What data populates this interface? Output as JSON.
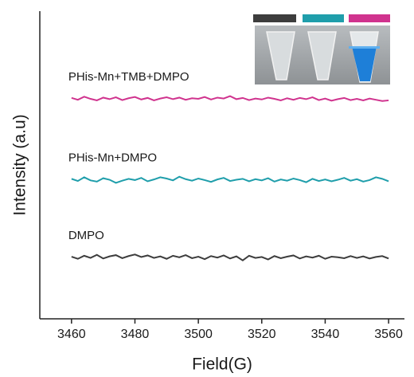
{
  "chart_data": {
    "type": "line",
    "xlabel": "Field(G)",
    "ylabel": "Intensity (a.u)",
    "x": [
      3460,
      3462,
      3464,
      3466,
      3468,
      3470,
      3472,
      3474,
      3476,
      3478,
      3480,
      3482,
      3484,
      3486,
      3488,
      3490,
      3492,
      3494,
      3496,
      3498,
      3500,
      3502,
      3504,
      3506,
      3508,
      3510,
      3512,
      3514,
      3516,
      3518,
      3520,
      3522,
      3524,
      3526,
      3528,
      3530,
      3532,
      3534,
      3536,
      3538,
      3540,
      3542,
      3544,
      3546,
      3548,
      3550,
      3552,
      3554,
      3556,
      3558,
      3560
    ],
    "xlim": [
      3450,
      3565
    ],
    "xticks": [
      3460,
      3480,
      3500,
      3520,
      3540,
      3560
    ],
    "ylim": [
      0,
      10
    ],
    "yticks": [],
    "series": [
      {
        "name": "DMPO",
        "color": "#3d3d3d",
        "values": [
          2.02,
          1.95,
          2.05,
          1.98,
          2.08,
          1.96,
          2.03,
          2.07,
          1.97,
          2.04,
          2.09,
          2.01,
          2.06,
          1.98,
          2.03,
          1.95,
          2.05,
          2.0,
          2.07,
          1.97,
          2.02,
          1.94,
          2.04,
          1.99,
          2.06,
          1.96,
          2.03,
          1.9,
          2.05,
          1.98,
          2.01,
          1.93,
          2.04,
          1.97,
          2.02,
          2.06,
          1.96,
          2.03,
          1.99,
          2.05,
          1.95,
          2.02,
          2.0,
          1.97,
          2.04,
          1.98,
          2.03,
          1.96,
          2.01,
          2.04,
          1.96
        ]
      },
      {
        "name": "PHis-Mn+DMPO",
        "color": "#1f9eab",
        "values": [
          4.55,
          4.48,
          4.6,
          4.5,
          4.46,
          4.57,
          4.52,
          4.42,
          4.49,
          4.55,
          4.51,
          4.58,
          4.47,
          4.53,
          4.6,
          4.56,
          4.5,
          4.62,
          4.54,
          4.49,
          4.56,
          4.51,
          4.45,
          4.53,
          4.58,
          4.48,
          4.52,
          4.55,
          4.47,
          4.54,
          4.5,
          4.57,
          4.46,
          4.53,
          4.49,
          4.56,
          4.51,
          4.44,
          4.55,
          4.48,
          4.53,
          4.47,
          4.52,
          4.58,
          4.49,
          4.54,
          4.46,
          4.51,
          4.6,
          4.55,
          4.47
        ]
      },
      {
        "name": "PHis-Mn+TMB+DMPO",
        "color": "#d0338e",
        "values": [
          7.18,
          7.12,
          7.22,
          7.15,
          7.1,
          7.19,
          7.14,
          7.2,
          7.11,
          7.17,
          7.21,
          7.13,
          7.18,
          7.1,
          7.16,
          7.2,
          7.14,
          7.19,
          7.12,
          7.17,
          7.15,
          7.21,
          7.13,
          7.19,
          7.16,
          7.24,
          7.14,
          7.18,
          7.11,
          7.16,
          7.13,
          7.19,
          7.15,
          7.1,
          7.17,
          7.12,
          7.18,
          7.14,
          7.2,
          7.11,
          7.16,
          7.09,
          7.14,
          7.18,
          7.11,
          7.15,
          7.1,
          7.16,
          7.12,
          7.08,
          7.1
        ]
      }
    ]
  }
}
